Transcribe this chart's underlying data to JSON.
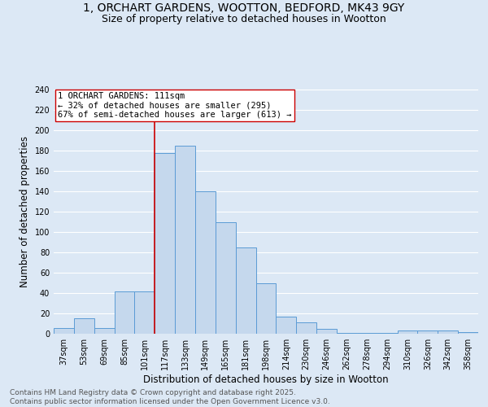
{
  "title_line1": "1, ORCHART GARDENS, WOOTTON, BEDFORD, MK43 9GY",
  "title_line2": "Size of property relative to detached houses in Wootton",
  "xlabel": "Distribution of detached houses by size in Wootton",
  "ylabel": "Number of detached properties",
  "categories": [
    "37sqm",
    "53sqm",
    "69sqm",
    "85sqm",
    "101sqm",
    "117sqm",
    "133sqm",
    "149sqm",
    "165sqm",
    "181sqm",
    "198sqm",
    "214sqm",
    "230sqm",
    "246sqm",
    "262sqm",
    "278sqm",
    "294sqm",
    "310sqm",
    "326sqm",
    "342sqm",
    "358sqm"
  ],
  "values": [
    6,
    15,
    6,
    42,
    42,
    178,
    185,
    140,
    110,
    85,
    50,
    17,
    11,
    5,
    1,
    1,
    1,
    3,
    3,
    3,
    2
  ],
  "bar_color": "#c5d8ed",
  "bar_edge_color": "#5b9bd5",
  "bg_color": "#dce8f5",
  "grid_color": "#ffffff",
  "vline_x": 4.5,
  "vline_color": "#cc0000",
  "annotation_text": "1 ORCHART GARDENS: 111sqm\n← 32% of detached houses are smaller (295)\n67% of semi-detached houses are larger (613) →",
  "annotation_box_color": "#ffffff",
  "annotation_box_edge": "#cc0000",
  "ylim": [
    0,
    240
  ],
  "yticks": [
    0,
    20,
    40,
    60,
    80,
    100,
    120,
    140,
    160,
    180,
    200,
    220,
    240
  ],
  "footer_line1": "Contains HM Land Registry data © Crown copyright and database right 2025.",
  "footer_line2": "Contains public sector information licensed under the Open Government Licence v3.0.",
  "title_fontsize": 10,
  "subtitle_fontsize": 9,
  "axis_label_fontsize": 8.5,
  "tick_fontsize": 7,
  "annotation_fontsize": 7.5,
  "footer_fontsize": 6.5
}
